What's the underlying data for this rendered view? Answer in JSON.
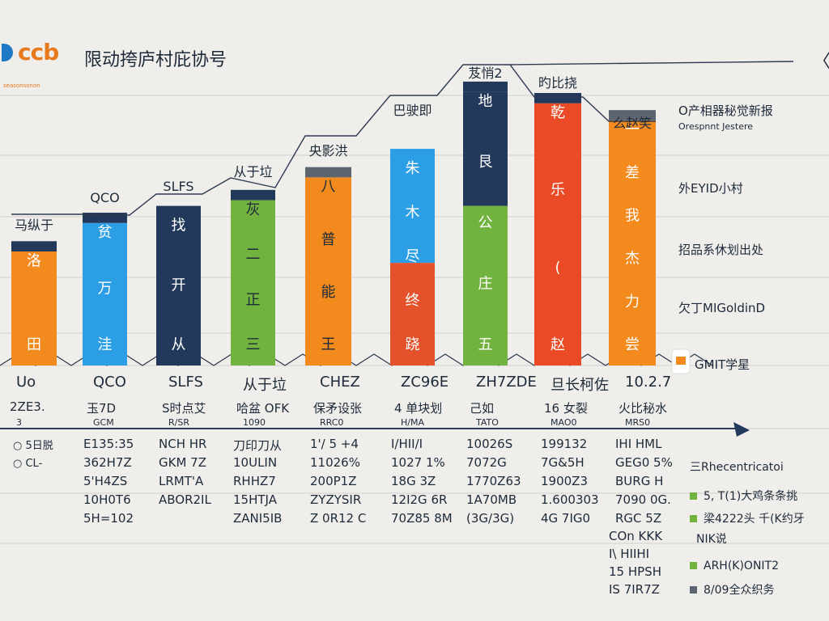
{
  "header": {
    "logo_text": "ccb",
    "title": "限动挎庐村庇协号",
    "subtitle": "seasonsonon",
    "corner_glyph": "〈〉"
  },
  "colors": {
    "navy": "#23395b",
    "blue": "#2b9ee6",
    "orange": "#f28a1e",
    "green": "#72b23f",
    "red": "#e4512a",
    "red_top": "#ea4b26",
    "gray": "#5c6470",
    "line": "#2e3b52"
  },
  "chart_data": {
    "type": "bar",
    "stacked": true,
    "categories": [
      "",
      "",
      "",
      "",
      "",
      "",
      "",
      "",
      ""
    ],
    "top_labels": [
      "马纵于",
      "QCO",
      "SLFS",
      "从于垃",
      "央影洪",
      "巴驶即",
      "芨悄2",
      "旳比挠",
      "么赵笑"
    ],
    "bar_texts": [
      [
        "洛",
        "田"
      ],
      [
        "贫",
        "万",
        "洼"
      ],
      [
        "找",
        "开",
        "从"
      ],
      [
        "灰",
        "二",
        "正",
        "三"
      ],
      [
        "八",
        "普",
        "能",
        "王"
      ],
      [
        "朱",
        "木",
        "尽",
        "终",
        "跷"
      ],
      [
        "地",
        "艮",
        "公",
        "庄",
        "五"
      ],
      [
        "乾",
        "乐",
        "(",
        "赵"
      ],
      [
        "一",
        "差",
        "我",
        "杰",
        "力",
        "尝"
      ]
    ],
    "series": [
      {
        "color": "orange",
        "values": [
          20,
          0,
          0,
          0,
          0,
          0,
          0,
          0,
          0
        ]
      },
      {
        "color": "blue",
        "values": [
          0,
          25,
          0,
          0,
          0,
          0,
          0,
          0,
          0
        ]
      },
      {
        "color": "navy",
        "values": [
          0,
          0,
          28,
          0,
          0,
          0,
          0,
          0,
          0
        ]
      },
      {
        "color": "green",
        "values": [
          0,
          0,
          0,
          29,
          0,
          0,
          0,
          0,
          0
        ]
      },
      {
        "color": "orange",
        "values": [
          0,
          0,
          0,
          0,
          33,
          0,
          0,
          0,
          0
        ]
      },
      {
        "color": "red",
        "values": [
          0,
          0,
          0,
          0,
          0,
          18,
          0,
          0,
          0
        ]
      },
      {
        "color": "blue",
        "values": [
          0,
          0,
          0,
          0,
          0,
          20,
          0,
          0,
          0
        ]
      },
      {
        "color": "green",
        "values": [
          0,
          0,
          0,
          0,
          0,
          0,
          28,
          0,
          0
        ]
      },
      {
        "color": "navy",
        "values": [
          0,
          0,
          0,
          0,
          0,
          0,
          20,
          0,
          0
        ]
      },
      {
        "color": "red_top",
        "values": [
          0,
          0,
          0,
          0,
          0,
          0,
          0,
          46,
          0
        ]
      },
      {
        "color": "orange",
        "values": [
          0,
          0,
          0,
          0,
          0,
          0,
          0,
          0,
          43
        ]
      }
    ],
    "caps": [
      {
        "color": "navy",
        "values": [
          2,
          2,
          0,
          2,
          0,
          0,
          2,
          2,
          0
        ]
      },
      {
        "color": "gray",
        "values": [
          0,
          0,
          0,
          0,
          2,
          0,
          0,
          0,
          2
        ]
      }
    ],
    "ylim": [
      0,
      60
    ],
    "legend": [
      {
        "text": "O产相器秘觉新报",
        "size": "big"
      },
      {
        "text": "Orespnnt Jestere",
        "size": "small"
      },
      {
        "text": "外EYID小村",
        "size": "big"
      },
      {
        "text": "招品系休划出处",
        "size": "big"
      },
      {
        "text": "欠丁MIGoldinD",
        "size": "big"
      },
      {
        "text": "GMIT学星",
        "size": "big"
      }
    ]
  },
  "table": {
    "group_labels": [
      "Uo",
      "QCO",
      "SLFS",
      "从于垃",
      "CHEZ",
      "ZC96E",
      "ZH7ZDE",
      "旦长柯佐",
      "10.2.7"
    ],
    "sub_rows": [
      [
        "2ZE3.",
        "玉7D",
        "S时点艾",
        "哈盆 OFK",
        "保矛设张",
        "4 单块划",
        "己如",
        "16 女裂",
        "火比秘水"
      ],
      [
        "3",
        "GCM",
        "R/SR",
        "1090",
        "RRC0",
        "H/MA",
        "TATO",
        "MAO0",
        "MRS0"
      ]
    ],
    "row_labels": [
      "5日脱",
      "CL-"
    ],
    "rows": [
      [
        "",
        "E135:35",
        "NCH HR",
        "刀印刀从",
        "1'/ 5 +4",
        "I/HII/I",
        "10026S",
        "199132",
        "IHI HML"
      ],
      [
        "",
        "362H7Z",
        "GKM 7Z",
        "10ULIN",
        "11026%",
        "1027 1%",
        "7072G",
        "7G&5H",
        "GEG0 5%"
      ],
      [
        "",
        "5'H4ZS",
        "LRMT'A",
        "RHHZ7",
        "200P1Z",
        "18G 3Z",
        "1770Z63",
        "1900Z3",
        "BURG H"
      ],
      [
        "",
        "10H0T6",
        "ABOR2IL",
        "15HTJA",
        "ZYZYSIR",
        "12I2G 6R",
        "1A70MB",
        "1.600303",
        "7090 0G."
      ],
      [
        "",
        "5H=102",
        "",
        "ZANI5IB",
        "Z 0R12 C",
        "70Z85 8M",
        "(3G/3G)",
        "4G 7IG0",
        "RGC 5Z"
      ]
    ],
    "extra_col": [
      "COn KKK",
      "I\\ HIIHI",
      "15 HPSH",
      "IS 7IR7Z"
    ],
    "notes_title": "三Rhecentricatoi",
    "notes": [
      {
        "text": "5, T(1)大鸡条条挑",
        "color": "green"
      },
      {
        "text": "梁4222头 千(K约牙",
        "color": "green"
      },
      {
        "text": "NIK说",
        "color": ""
      },
      {
        "text": "ARH(K)ONIT2",
        "color": "green"
      },
      {
        "text": "8/09全众织务",
        "color": "gray"
      }
    ]
  }
}
